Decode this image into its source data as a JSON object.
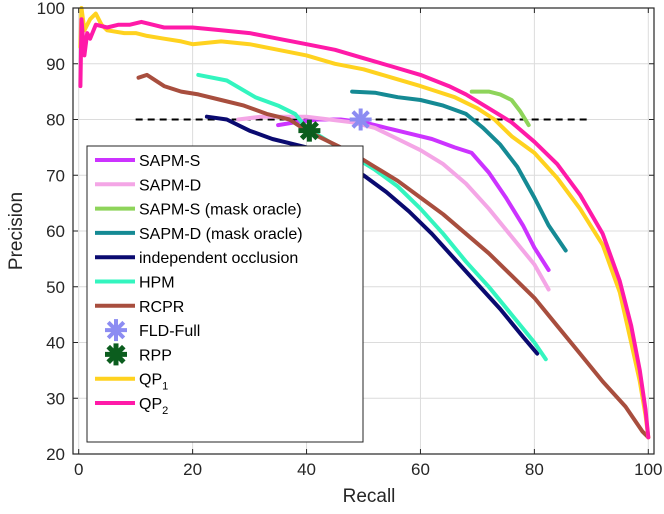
{
  "chart_data": {
    "type": "line",
    "title": "",
    "xlabel": "Recall",
    "ylabel": "Precision",
    "xlim": [
      -1,
      101
    ],
    "ylim": [
      20,
      100
    ],
    "xticks": [
      0,
      20,
      40,
      60,
      80,
      100
    ],
    "yticks": [
      20,
      30,
      40,
      50,
      60,
      70,
      80,
      90,
      100
    ],
    "grid": true,
    "legend_position": "center-left",
    "reference_line": {
      "style": "dashed",
      "color": "#000000",
      "y": 80,
      "x": [
        10,
        90
      ]
    },
    "series": [
      {
        "name": "SAPM-S",
        "legend": "SAPM-S",
        "color": "#cc33ff",
        "kind": "line",
        "x": [
          35,
          38,
          42,
          46,
          50,
          54,
          58,
          62,
          66,
          69,
          72,
          75,
          78,
          80,
          82.5
        ],
        "y": [
          79,
          79.5,
          80,
          80,
          79.5,
          78.5,
          77.5,
          76.5,
          75,
          74,
          70.5,
          66,
          61,
          57,
          53
        ]
      },
      {
        "name": "SAPM-D",
        "legend": "SAPM-D",
        "color": "#f4a6e6",
        "kind": "line",
        "x": [
          28,
          32,
          36,
          40,
          44,
          48,
          52,
          56,
          60,
          64,
          68,
          72,
          76,
          80,
          82.5
        ],
        "y": [
          80,
          80.5,
          80.5,
          80.5,
          80,
          79.5,
          78.5,
          76.5,
          74.5,
          72,
          68.5,
          64,
          59,
          54,
          49.5
        ]
      },
      {
        "name": "SAPM-S (mask oracle)",
        "legend": "SAPM-S (mask oracle)",
        "color": "#8ed45a",
        "kind": "line",
        "x": [
          69,
          72,
          74,
          76,
          77.5,
          79
        ],
        "y": [
          85,
          85,
          84.5,
          83.5,
          81.5,
          79
        ]
      },
      {
        "name": "SAPM-D (mask oracle)",
        "legend": "SAPM-D (mask oracle)",
        "color": "#158a94",
        "kind": "line",
        "x": [
          48,
          52,
          56,
          60,
          64,
          68,
          71,
          74,
          77,
          80,
          82.5,
          85.5
        ],
        "y": [
          85,
          84.8,
          84,
          83.5,
          82.5,
          81,
          78.5,
          75.5,
          71.5,
          66,
          61,
          56.5
        ]
      },
      {
        "name": "independent occlusion",
        "legend": "independent occlusion",
        "color": "#0a0a70",
        "kind": "line",
        "x": [
          22.5,
          26,
          30,
          34,
          38,
          42,
          46,
          50,
          54,
          58,
          62,
          66,
          70,
          74,
          78,
          80.5
        ],
        "y": [
          80.5,
          80,
          78,
          76.5,
          75.5,
          74.5,
          72.5,
          70,
          67,
          63.5,
          59.5,
          55,
          50.5,
          46,
          41,
          38
        ]
      },
      {
        "name": "HPM",
        "legend": "HPM",
        "color": "#33f5bf",
        "kind": "line",
        "x": [
          21,
          26,
          31,
          35,
          38,
          40,
          44,
          48,
          52,
          56,
          60,
          64,
          68,
          72,
          76,
          80,
          82
        ],
        "y": [
          88,
          87,
          84,
          82.5,
          81,
          78.5,
          76,
          73.5,
          71,
          68,
          64,
          59.5,
          54.5,
          50,
          45,
          40,
          37
        ]
      },
      {
        "name": "RCPR",
        "legend": "RCPR",
        "color": "#a84e3e",
        "kind": "line",
        "x": [
          10.5,
          12,
          15,
          18,
          21,
          25,
          29,
          33,
          37,
          40,
          44,
          48,
          52,
          56,
          60,
          64,
          68,
          72,
          76,
          80,
          84,
          88,
          92,
          96,
          99,
          100
        ],
        "y": [
          87.5,
          88,
          86,
          85,
          84.5,
          83.5,
          82.5,
          81,
          80,
          78,
          76,
          74,
          71.5,
          69,
          66,
          63,
          59.5,
          56,
          52,
          48,
          43,
          38,
          33,
          28.5,
          24,
          23
        ]
      },
      {
        "name": "FLD-Full",
        "legend": "FLD-Full",
        "color": "#8c8cf2",
        "kind": "marker",
        "x": [
          49.5
        ],
        "y": [
          80
        ]
      },
      {
        "name": "RPP",
        "legend": "RPP",
        "color": "#0b5d1e",
        "kind": "marker",
        "x": [
          40.5
        ],
        "y": [
          78
        ]
      },
      {
        "name": "QP1",
        "legend": "QP",
        "legend_sub": "1",
        "color": "#ffd21f",
        "kind": "line",
        "x": [
          0.3,
          0.5,
          1,
          2,
          3,
          4,
          5,
          8,
          10,
          12,
          15,
          18,
          20,
          25,
          30,
          35,
          40,
          45,
          50,
          55,
          60,
          63,
          66,
          70,
          73,
          76,
          80,
          84,
          88,
          92,
          95,
          97,
          98.5,
          99.5,
          100
        ],
        "y": [
          93,
          100,
          96,
          98,
          99,
          97,
          96,
          95.5,
          95.5,
          95,
          94.5,
          94,
          93.5,
          94,
          93.5,
          92.5,
          91.5,
          90,
          89,
          87.5,
          86,
          85,
          84,
          82,
          80,
          77,
          74,
          69.5,
          64,
          57.5,
          49,
          40,
          33,
          27,
          23
        ]
      },
      {
        "name": "QP2",
        "legend": "QP",
        "legend_sub": "2",
        "color": "#ff1aa8",
        "kind": "line",
        "x": [
          0.3,
          0.5,
          1,
          1.5,
          2,
          3,
          5,
          7,
          9,
          11,
          13,
          15,
          20,
          25,
          30,
          35,
          40,
          45,
          50,
          55,
          60,
          65,
          68,
          72,
          76,
          80,
          84,
          88,
          92,
          95,
          97,
          98.5,
          99.5,
          100
        ],
        "y": [
          86,
          98,
          91.5,
          95.5,
          94.5,
          97,
          96.5,
          97,
          97,
          97.5,
          97,
          96.5,
          96.5,
          96,
          95.5,
          94.5,
          93.5,
          92.5,
          91,
          89.5,
          88,
          86,
          84.5,
          82,
          79.5,
          76,
          72,
          66.5,
          59.5,
          51,
          43,
          35,
          28,
          23
        ]
      }
    ]
  }
}
